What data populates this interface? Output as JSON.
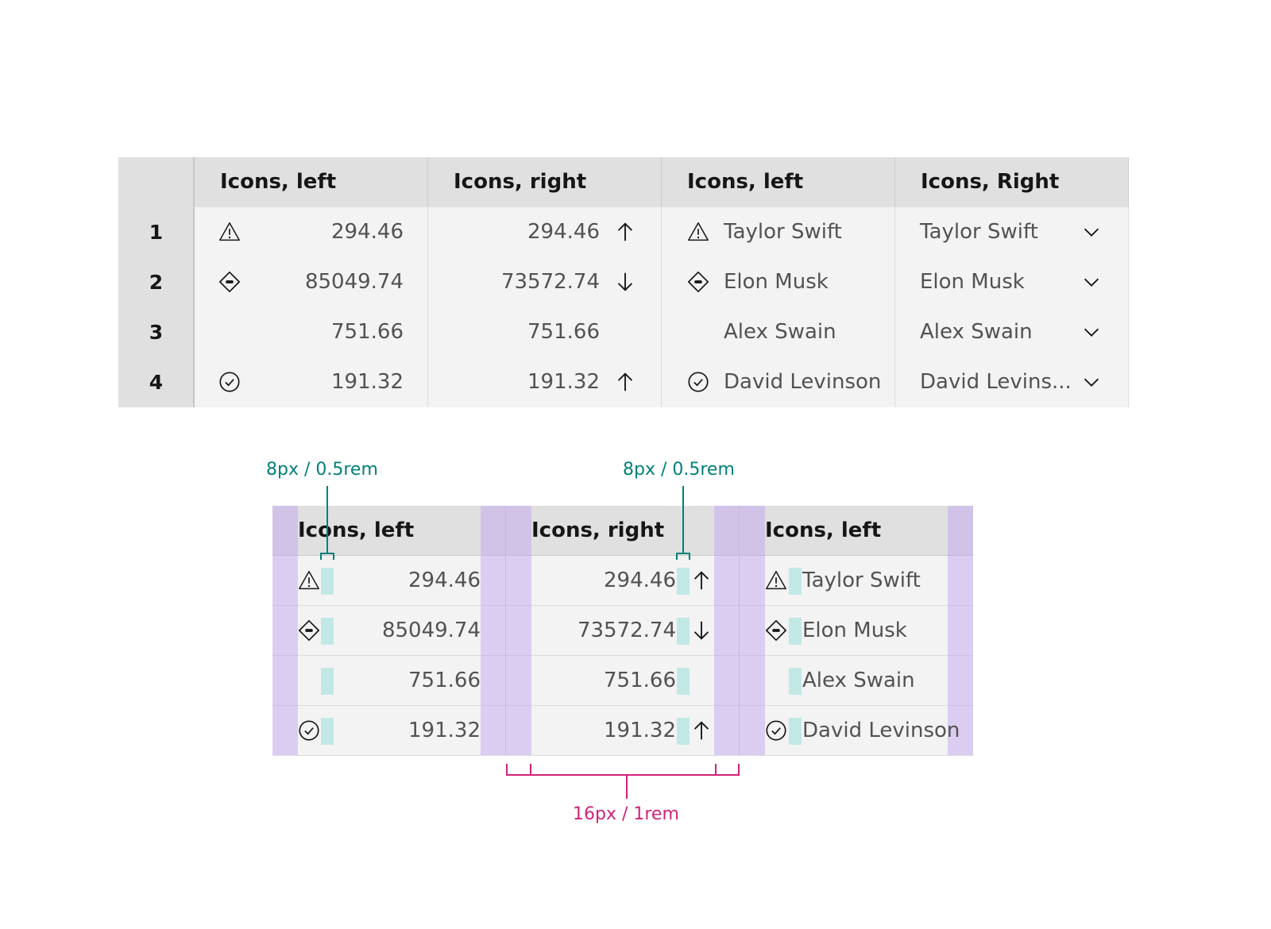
{
  "top_table": {
    "headers": [
      "Icons, left",
      "Icons, right",
      "Icons, left",
      "Icons, Right"
    ],
    "rows": [
      {
        "index": "1",
        "left_icon": "warning-icon",
        "left_value": "294.46",
        "right_value": "294.46",
        "right_icon": "arrow-up-icon",
        "name_icon": "warning-icon",
        "name": "Taylor Swift",
        "name_right": "Taylor Swift",
        "dropdown_icon": "chevron-down-icon"
      },
      {
        "index": "2",
        "left_icon": "diamond-minus-icon",
        "left_value": "85049.74",
        "right_value": "73572.74",
        "right_icon": "arrow-down-icon",
        "name_icon": "diamond-minus-icon",
        "name": "Elon Musk",
        "name_right": "Elon Musk",
        "dropdown_icon": "chevron-down-icon"
      },
      {
        "index": "3",
        "left_icon": "",
        "left_value": "751.66",
        "right_value": "751.66",
        "right_icon": "",
        "name_icon": "",
        "name": "Alex Swain",
        "name_right": "Alex Swain",
        "dropdown_icon": "chevron-down-icon"
      },
      {
        "index": "4",
        "left_icon": "checkmark-circle-icon",
        "left_value": "191.32",
        "right_value": "191.32",
        "right_icon": "arrow-up-icon",
        "name_icon": "checkmark-circle-icon",
        "name": "David Levinson",
        "name_right": "David Levins...",
        "dropdown_icon": "chevron-down-icon"
      }
    ]
  },
  "spec_table": {
    "headers": [
      "Icons, left",
      "Icons, right",
      "Icons, left"
    ],
    "rows": [
      {
        "left_value": "294.46",
        "right_value": "294.46",
        "name": "Taylor Swift"
      },
      {
        "left_value": "85049.74",
        "right_value": "73572.74",
        "name": "Elon Musk"
      },
      {
        "left_value": "751.66",
        "right_value": "751.66",
        "name": "Alex Swain"
      },
      {
        "left_value": "191.32",
        "right_value": "191.32",
        "name": "David Levinson"
      }
    ]
  },
  "annotations": {
    "icon_gap_left": "8px / 0.5rem",
    "icon_gap_right": "8px / 0.5rem",
    "column_padding": "16px / 1rem"
  },
  "colors": {
    "header_bg": "#e0e0e0",
    "row_bg": "#f3f3f3",
    "padding_overlay": "#dccff5",
    "gap_overlay": "#c2e8e6",
    "teal_annotation": "#00807a",
    "magenta_annotation": "#d0237a"
  }
}
